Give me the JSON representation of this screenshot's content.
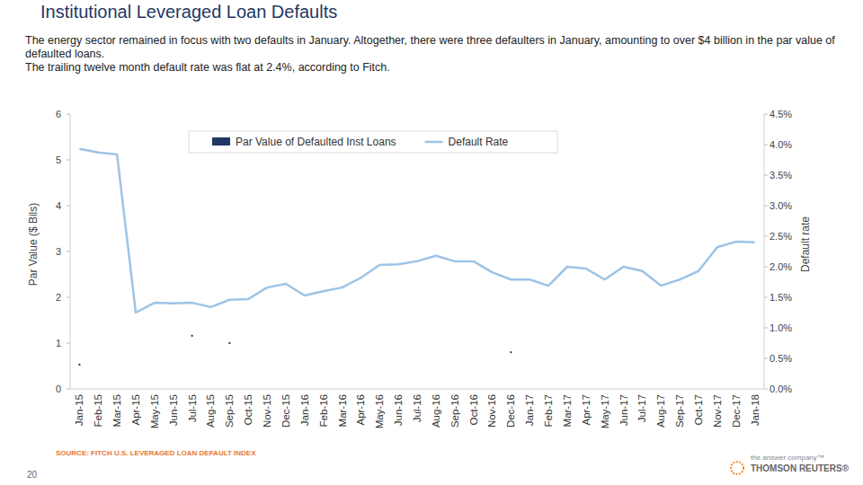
{
  "chart_data": {
    "type": "line",
    "title": "Institutional Leveraged Loan Defaults",
    "subtitle": [
      "The energy sector remained in focus with two defaults in January. Altogether, there were three defaulters in January, amounting to over $4 billion in the par value of defaulted loans.",
      "The trailing twelve month default rate was flat at 2.4%, according to Fitch."
    ],
    "y_label": "Par Value ($ Bils)",
    "y2_label": "Default rate",
    "categories": [
      "Jan-15",
      "Feb-15",
      "Mar-15",
      "Apr-15",
      "May-15",
      "Jun-15",
      "Jul-15",
      "Aug-15",
      "Sep-15",
      "Oct-15",
      "Nov-15",
      "Dec-15",
      "Jan-16",
      "Feb-16",
      "Mar-16",
      "Apr-16",
      "May-16",
      "Jun-16",
      "Jul-16",
      "Aug-16",
      "Sep-16",
      "Oct-16",
      "Nov-16",
      "Dec-16",
      "Jan-17",
      "Feb-17",
      "Mar-17",
      "Apr-17",
      "May-17",
      "Jun-17",
      "Jul-17",
      "Aug-17",
      "Sep-17",
      "Oct-17",
      "Nov-17",
      "Dec-17",
      "Jan-18"
    ],
    "series": [
      {
        "name": "Par Value of Defaulted Inst Loans",
        "type": "scatter",
        "marker": "square",
        "color": "#1F3864",
        "values": [
          0.53,
          null,
          null,
          null,
          null,
          null,
          1.16,
          null,
          1.0,
          null,
          null,
          null,
          null,
          null,
          null,
          null,
          null,
          null,
          null,
          null,
          null,
          null,
          null,
          0.8,
          null,
          null,
          null,
          null,
          null,
          null,
          null,
          null,
          null,
          null,
          null,
          null,
          null
        ]
      },
      {
        "name": "Default Rate",
        "type": "line",
        "axis": "y2",
        "color": "#9DC3E6",
        "values": [
          3.93,
          3.87,
          3.84,
          1.25,
          1.41,
          1.4,
          1.41,
          1.34,
          1.46,
          1.47,
          1.66,
          1.72,
          1.53,
          1.6,
          1.66,
          1.82,
          2.03,
          2.04,
          2.09,
          2.18,
          2.09,
          2.09,
          1.91,
          1.79,
          1.79,
          1.69,
          2.0,
          1.97,
          1.79,
          2.0,
          1.93,
          1.69,
          1.79,
          1.93,
          2.32,
          2.41,
          2.4
        ]
      }
    ],
    "ylim": [
      0,
      6
    ],
    "yticks": [
      0,
      1,
      2,
      3,
      4,
      5,
      6
    ],
    "y2lim": [
      0,
      4.5
    ],
    "y2ticks": [
      {
        "value": 0,
        "label": "0.0%"
      },
      {
        "value": 0.5,
        "label": "0.5%"
      },
      {
        "value": 1,
        "label": "1.0%"
      },
      {
        "value": 1.5,
        "label": "1.5%"
      },
      {
        "value": 2,
        "label": "2.0%"
      },
      {
        "value": 2.5,
        "label": "2.5%"
      },
      {
        "value": 3,
        "label": "3.0%"
      },
      {
        "value": 3.5,
        "label": "3.5%"
      },
      {
        "value": 4,
        "label": "4.0%"
      },
      {
        "value": 4.5,
        "label": "4.5%"
      }
    ],
    "grid": false,
    "legend": "top"
  },
  "footer": {
    "source": "SOURCE: FITCH U.S. LEVERAGED LOAN DEFAULT INDEX",
    "page_number": "20",
    "brand_tagline": "the answer company™",
    "brand": "THOMSON REUTERS®"
  }
}
